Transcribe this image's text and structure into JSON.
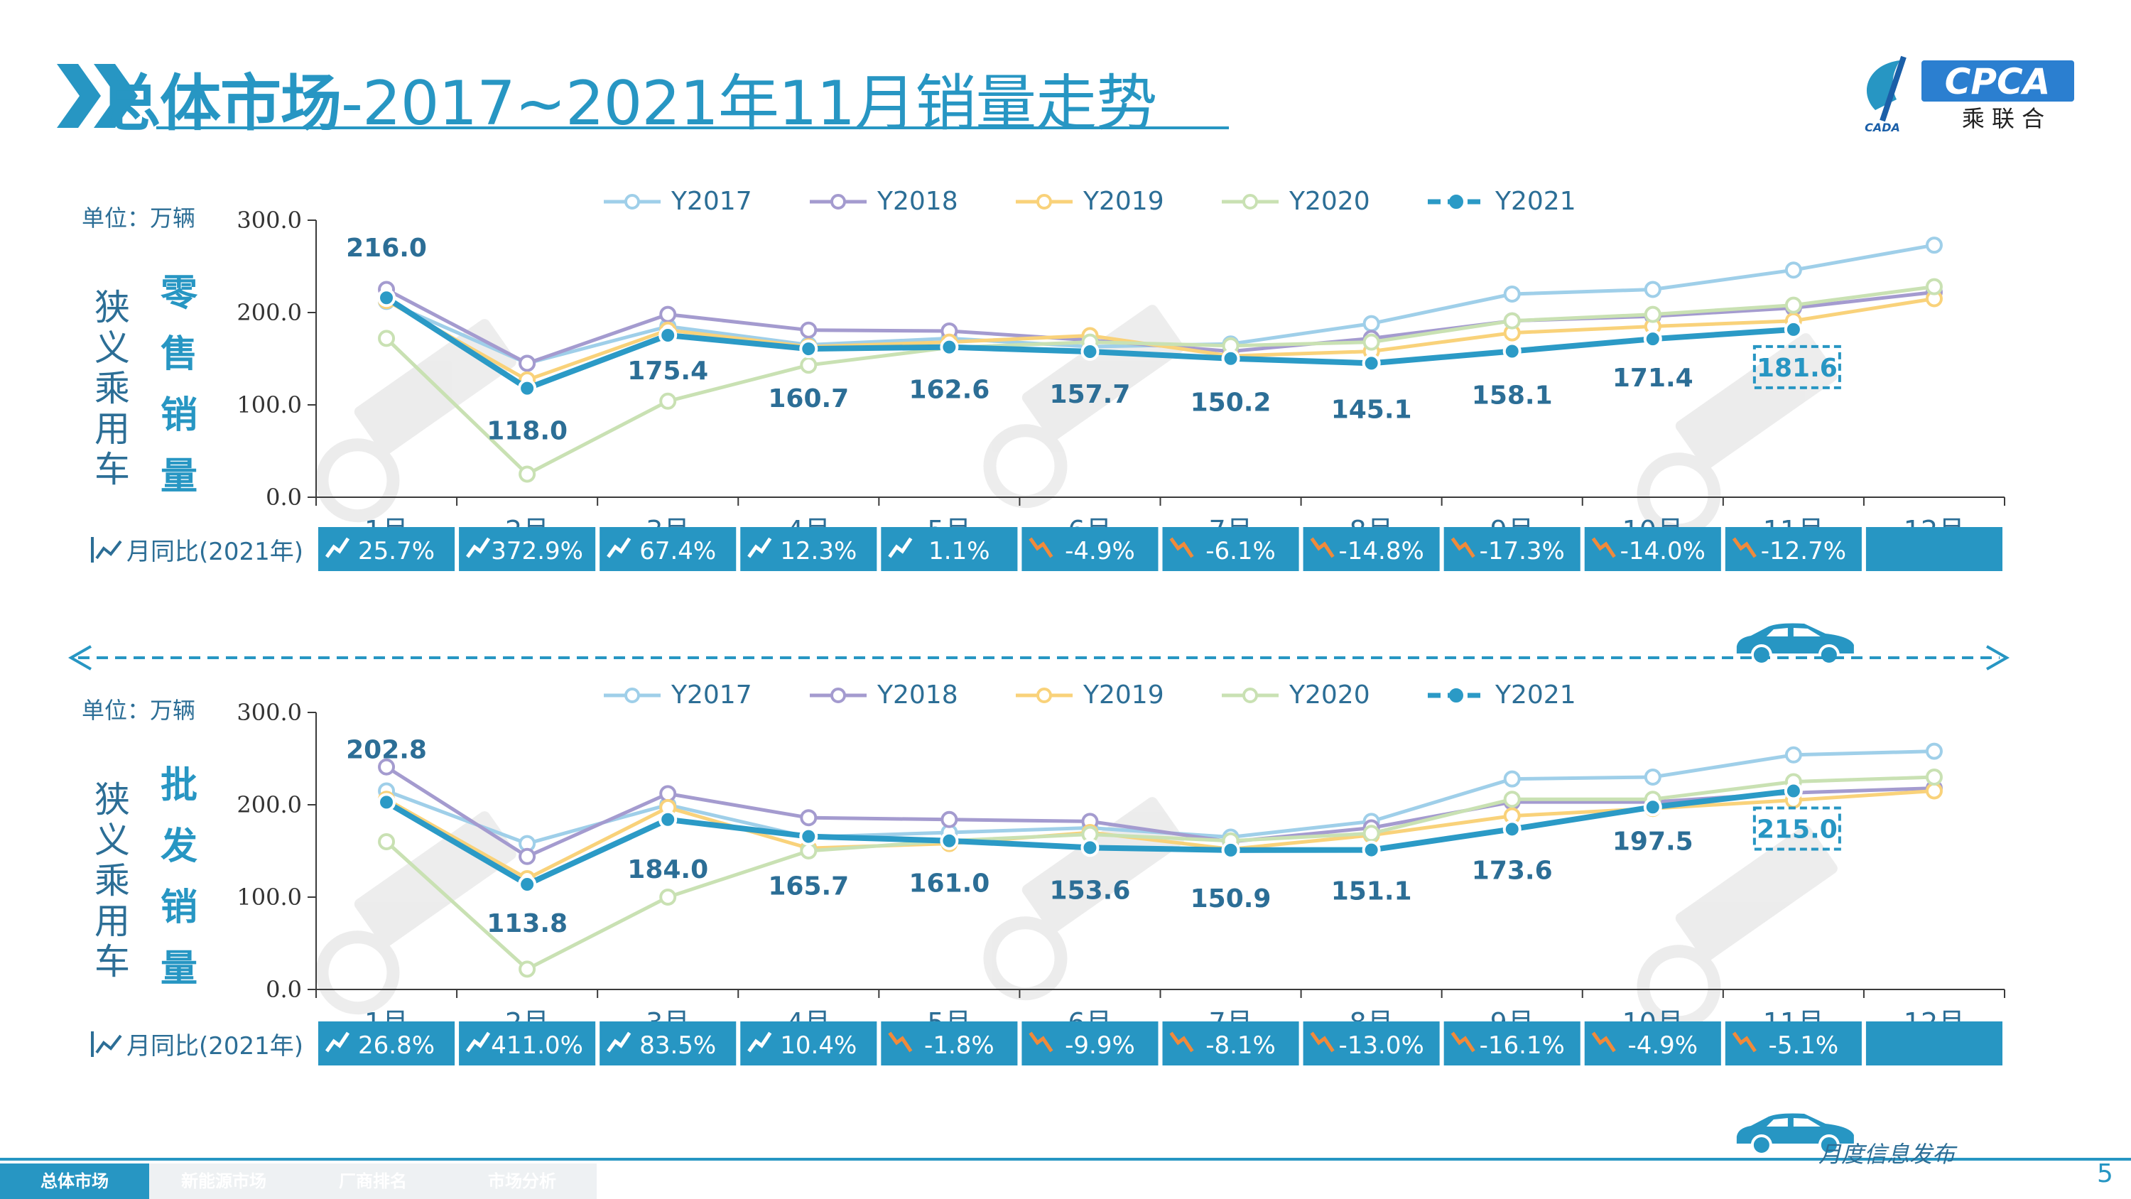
{
  "header": {
    "title_bold": "总体市场",
    "title_rest": "-2017~2021年11月销量走势",
    "logo_text": "CPCA",
    "logo_sub": "乘 联 合",
    "logo_small": "CADA"
  },
  "footer": {
    "tabs": [
      "总体市场",
      "新能源市场",
      "厂商排名",
      "市场分析"
    ],
    "active_tab": "总体市场",
    "note": "月度信息发布",
    "page_number": "5"
  },
  "colors": {
    "Y2017": "#9fcfe9",
    "Y2018": "#a49bcf",
    "Y2019": "#f9d27a",
    "Y2020": "#c9e1b3",
    "Y2021": "#2b9ac6",
    "accent": "#2796c3",
    "up_arrow": "#ffffff",
    "down_arrow": "#f08a3b"
  },
  "chart_data": [
    {
      "type": "line",
      "unit": "单位：万辆",
      "side_label_left": "狭义乘用车",
      "side_label_right": "零售销量",
      "categories": [
        "1月",
        "2月",
        "3月",
        "4月",
        "5月",
        "6月",
        "7月",
        "8月",
        "9月",
        "10月",
        "11月",
        "12月"
      ],
      "yticks": [
        "300.0",
        "200.0",
        "100.0",
        "0.0"
      ],
      "ylim": [
        0,
        300
      ],
      "series": [
        {
          "name": "Y2017",
          "values": [
            212,
            145,
            185,
            165,
            172,
            163,
            166,
            188,
            220,
            225,
            246,
            273
          ]
        },
        {
          "name": "Y2018",
          "values": [
            225,
            145,
            198,
            181,
            180,
            170,
            158,
            172,
            191,
            196,
            205,
            222
          ]
        },
        {
          "name": "Y2019",
          "values": [
            213,
            127,
            181,
            163,
            168,
            175,
            153,
            158,
            178,
            185,
            191,
            215
          ]
        },
        {
          "name": "Y2020",
          "values": [
            172,
            25,
            104,
            143,
            162,
            168,
            164,
            168,
            191,
            198,
            208,
            228
          ]
        },
        {
          "name": "Y2021",
          "values": [
            216.0,
            118.0,
            175.4,
            160.7,
            162.6,
            157.7,
            150.2,
            145.1,
            158.1,
            171.4,
            181.6,
            null
          ]
        }
      ],
      "data_labels": [
        "216.0",
        "118.0",
        "175.4",
        "160.7",
        "162.6",
        "157.7",
        "150.2",
        "145.1",
        "158.1",
        "171.4",
        "181.6"
      ],
      "highlight_index": 10,
      "legend": "top",
      "yoy_label": "月同比(2021年)",
      "yoy": [
        "25.7%",
        "372.9%",
        "67.4%",
        "12.3%",
        "1.1%",
        "-4.9%",
        "-6.1%",
        "-14.8%",
        "-17.3%",
        "-14.0%",
        "-12.7%",
        ""
      ]
    },
    {
      "type": "line",
      "unit": "单位：万辆",
      "side_label_left": "狭义乘用车",
      "side_label_right": "批发销量",
      "categories": [
        "1月",
        "2月",
        "3月",
        "4月",
        "5月",
        "6月",
        "7月",
        "8月",
        "9月",
        "10月",
        "11月",
        "12月"
      ],
      "yticks": [
        "300.0",
        "200.0",
        "100.0",
        "0.0"
      ],
      "ylim": [
        0,
        300
      ],
      "series": [
        {
          "name": "Y2017",
          "values": [
            215,
            158,
            200,
            165,
            170,
            175,
            165,
            182,
            228,
            230,
            254,
            258
          ]
        },
        {
          "name": "Y2018",
          "values": [
            241,
            144,
            212,
            186,
            184,
            182,
            160,
            175,
            203,
            203,
            213,
            218
          ]
        },
        {
          "name": "Y2019",
          "values": [
            206,
            120,
            197,
            153,
            158,
            170,
            152,
            167,
            188,
            196,
            205,
            215
          ]
        },
        {
          "name": "Y2020",
          "values": [
            160,
            22,
            100,
            150,
            161,
            168,
            161,
            169,
            206,
            206,
            225,
            230
          ]
        },
        {
          "name": "Y2021",
          "values": [
            202.8,
            113.8,
            184.0,
            165.7,
            161.0,
            153.6,
            150.9,
            151.1,
            173.6,
            197.5,
            215.0,
            null
          ]
        }
      ],
      "data_labels": [
        "202.8",
        "113.8",
        "184.0",
        "165.7",
        "161.0",
        "153.6",
        "150.9",
        "151.1",
        "173.6",
        "197.5",
        "215.0"
      ],
      "highlight_index": 10,
      "legend": "top",
      "yoy_label": "月同比(2021年)",
      "yoy": [
        "26.8%",
        "411.0%",
        "83.5%",
        "10.4%",
        "-1.8%",
        "-9.9%",
        "-8.1%",
        "-13.0%",
        "-16.1%",
        "-4.9%",
        "-5.1%",
        ""
      ]
    }
  ]
}
